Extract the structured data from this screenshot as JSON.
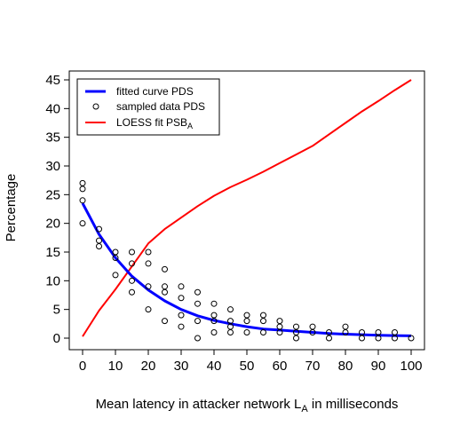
{
  "chart_data": {
    "type": "scatter",
    "title": "",
    "xlabel": "Mean latency in attacker network L",
    "xlabel_sub": "A",
    "xlabel_suffix": " in milliseconds",
    "ylabel": "Percentage",
    "xlim": [
      0,
      100
    ],
    "ylim": [
      0,
      45
    ],
    "xticks": [
      0,
      10,
      20,
      30,
      40,
      50,
      60,
      70,
      80,
      90,
      100
    ],
    "yticks": [
      0,
      5,
      10,
      15,
      20,
      25,
      30,
      35,
      40,
      45
    ],
    "grid": false,
    "legend_position": "top-left",
    "series": [
      {
        "name": "fitted curve PDS",
        "kind": "line",
        "color": "#0000ff",
        "x": [
          0,
          5,
          10,
          15,
          20,
          25,
          30,
          35,
          40,
          45,
          50,
          55,
          60,
          65,
          70,
          75,
          80,
          85,
          90,
          95,
          100
        ],
        "y": [
          23.5,
          18.1,
          14.0,
          10.8,
          8.4,
          6.5,
          5.0,
          3.9,
          3.1,
          2.5,
          2.0,
          1.6,
          1.4,
          1.2,
          1.0,
          0.8,
          0.7,
          0.6,
          0.5,
          0.45,
          0.4
        ]
      },
      {
        "name": "sampled data PDS",
        "kind": "points",
        "color": "#000000",
        "points": [
          [
            0,
            27
          ],
          [
            0,
            26
          ],
          [
            0,
            24
          ],
          [
            0,
            20
          ],
          [
            5,
            19
          ],
          [
            5,
            17
          ],
          [
            5,
            16
          ],
          [
            10,
            15
          ],
          [
            10,
            14
          ],
          [
            10,
            11
          ],
          [
            15,
            15
          ],
          [
            15,
            13
          ],
          [
            15,
            10
          ],
          [
            15,
            8
          ],
          [
            20,
            15
          ],
          [
            20,
            13
          ],
          [
            20,
            9
          ],
          [
            20,
            5
          ],
          [
            25,
            12
          ],
          [
            25,
            9
          ],
          [
            25,
            8
          ],
          [
            25,
            3
          ],
          [
            30,
            9
          ],
          [
            30,
            7
          ],
          [
            30,
            4
          ],
          [
            30,
            2
          ],
          [
            35,
            8
          ],
          [
            35,
            6
          ],
          [
            35,
            3
          ],
          [
            35,
            0
          ],
          [
            40,
            6
          ],
          [
            40,
            4
          ],
          [
            40,
            3
          ],
          [
            40,
            1
          ],
          [
            45,
            5
          ],
          [
            45,
            3
          ],
          [
            45,
            2
          ],
          [
            45,
            1
          ],
          [
            50,
            4
          ],
          [
            50,
            3
          ],
          [
            50,
            1
          ],
          [
            55,
            4
          ],
          [
            55,
            3
          ],
          [
            55,
            1
          ],
          [
            60,
            3
          ],
          [
            60,
            2
          ],
          [
            60,
            1
          ],
          [
            65,
            2
          ],
          [
            65,
            1
          ],
          [
            65,
            0
          ],
          [
            70,
            2
          ],
          [
            70,
            1
          ],
          [
            75,
            1
          ],
          [
            75,
            0
          ],
          [
            80,
            2
          ],
          [
            80,
            1
          ],
          [
            85,
            1
          ],
          [
            85,
            0
          ],
          [
            90,
            1
          ],
          [
            90,
            0
          ],
          [
            95,
            1
          ],
          [
            95,
            0
          ],
          [
            100,
            0
          ]
        ]
      },
      {
        "name": "LOESS fit PSB",
        "name_sub": "A",
        "kind": "line",
        "color": "#ff0000",
        "x": [
          0,
          5,
          10,
          15,
          20,
          25,
          30,
          35,
          40,
          45,
          50,
          55,
          60,
          65,
          70,
          75,
          80,
          85,
          90,
          95,
          100
        ],
        "y": [
          0.3,
          4.8,
          8.5,
          12.5,
          16.5,
          19.0,
          21.0,
          23.0,
          24.8,
          26.3,
          27.6,
          29.0,
          30.5,
          32.0,
          33.5,
          35.5,
          37.5,
          39.5,
          41.3,
          43.2,
          45.0
        ]
      }
    ]
  }
}
